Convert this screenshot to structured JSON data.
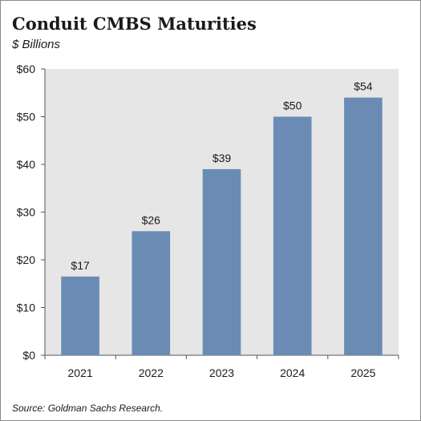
{
  "chart_data": {
    "type": "bar",
    "title": "Conduit CMBS Maturities",
    "subtitle": "$ Billions",
    "source": "Source: Goldman Sachs Research.",
    "categories": [
      "2021",
      "2022",
      "2023",
      "2024",
      "2025"
    ],
    "values": [
      16.5,
      26,
      39,
      50,
      54
    ],
    "data_labels": [
      "$17",
      "$26",
      "$39",
      "$50",
      "$54"
    ],
    "y_ticks": [
      "$0",
      "$10",
      "$20",
      "$30",
      "$40",
      "$50",
      "$60"
    ],
    "ylim": [
      0,
      60
    ],
    "grid": false,
    "bar_color": "#6a8cb4",
    "plot_background": "#e6e6e6"
  }
}
